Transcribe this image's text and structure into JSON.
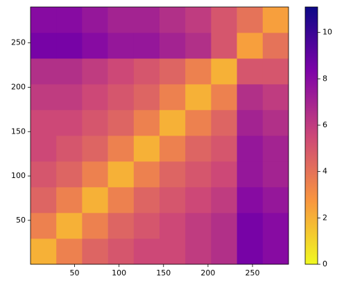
{
  "chart_data": {
    "type": "heatmap",
    "colormap": "plasma_r",
    "x_edges": [
      0.5,
      29.5,
      58.5,
      87.5,
      116.5,
      145.5,
      174.5,
      203.5,
      232.5,
      261.5,
      290.5
    ],
    "y_edges": [
      0.5,
      29.5,
      58.5,
      87.5,
      116.5,
      145.5,
      174.5,
      203.5,
      232.5,
      261.5,
      290.5
    ],
    "values": [
      [
        2,
        3.5,
        4.5,
        5,
        5.5,
        5.5,
        6,
        6.5,
        8.5,
        8
      ],
      [
        3.5,
        2,
        3.5,
        4.5,
        5,
        5.5,
        6,
        6.5,
        8.5,
        8
      ],
      [
        4.5,
        3.5,
        2,
        3.5,
        4.5,
        5,
        5.5,
        6,
        8,
        7.5
      ],
      [
        5,
        4.5,
        3.5,
        2,
        3.5,
        4.5,
        5,
        5.5,
        7.5,
        7
      ],
      [
        5.5,
        5,
        4.5,
        3.5,
        2,
        3.5,
        4.5,
        5,
        7.5,
        7
      ],
      [
        5.5,
        5.5,
        5,
        4.5,
        3.5,
        2,
        3.5,
        4.5,
        7,
        6.5
      ],
      [
        6,
        6,
        5.5,
        5,
        4.5,
        3.5,
        2,
        3.5,
        6.5,
        6
      ],
      [
        6.5,
        6.5,
        6,
        5.5,
        5,
        4.5,
        3.5,
        2,
        5,
        5
      ],
      [
        8.5,
        8.5,
        8,
        7.5,
        7.5,
        7,
        6.5,
        5,
        2.5,
        4
      ],
      [
        8,
        8,
        7.5,
        7,
        7,
        6.5,
        6,
        5,
        4,
        2.5
      ]
    ],
    "xlim": [
      0.5,
      290.5
    ],
    "ylim": [
      0.5,
      290.5
    ],
    "xticks": [
      50,
      100,
      150,
      200,
      250
    ],
    "yticks": [
      50,
      100,
      150,
      200,
      250
    ],
    "clim": [
      0,
      11.1
    ],
    "cticks": [
      0,
      2,
      4,
      6,
      8,
      10
    ]
  }
}
